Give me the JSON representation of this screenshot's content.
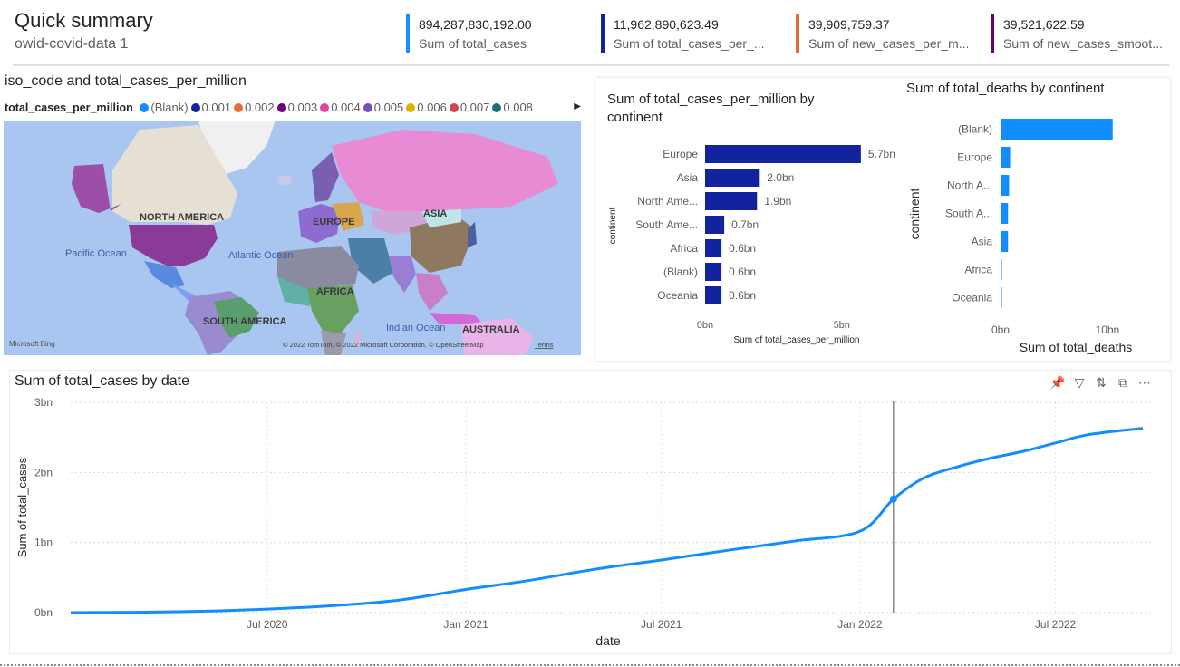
{
  "header": {
    "title": "Quick summary",
    "subtitle": "owid-covid-data 1"
  },
  "kpis": [
    {
      "value": "894,287,830,192.00",
      "label": "Sum of total_cases",
      "color": "#118DFF"
    },
    {
      "value": "11,962,890,623.49",
      "label": "Sum of total_cases_per_...",
      "color": "#12239E"
    },
    {
      "value": "39,909,759.37",
      "label": "Sum of new_cases_per_m...",
      "color": "#E66C37"
    },
    {
      "value": "39,521,622.59",
      "label": "Sum of new_cases_smoot...",
      "color": "#6B007B"
    }
  ],
  "map": {
    "title": "iso_code and total_cases_per_million",
    "legend_title": "total_cases_per_million",
    "legend": [
      {
        "label": "(Blank)",
        "color": "#118DFF"
      },
      {
        "label": "0.001",
        "color": "#12239E"
      },
      {
        "label": "0.002",
        "color": "#E66C37"
      },
      {
        "label": "0.003",
        "color": "#6B007B"
      },
      {
        "label": "0.004",
        "color": "#E044A7"
      },
      {
        "label": "0.005",
        "color": "#744EC2"
      },
      {
        "label": "0.006",
        "color": "#D9B300"
      },
      {
        "label": "0.007",
        "color": "#D64550"
      },
      {
        "label": "0.008",
        "color": "#197278"
      }
    ],
    "labels": {
      "north_america": "NORTH AMERICA",
      "europe": "EUROPE",
      "asia": "ASIA",
      "africa": "AFRICA",
      "south_america": "SOUTH AMERICA",
      "australia": "AUSTRALIA",
      "pacific_ocean": "Pacific Ocean",
      "atlantic_ocean": "Atlantic Ocean",
      "indian_ocean": "Indian Ocean"
    },
    "brand": "Microsoft Bing",
    "attribution": "© 2022 TomTom, © 2022 Microsoft Corporation, © OpenStreetMap",
    "terms": "Terms"
  },
  "toolbar": {
    "pin_icon": "pin-icon",
    "filter_icon": "filter-icon",
    "drill_icon": "drill-icon",
    "focus_icon": "focus-mode-icon",
    "more_icon": "more-options-icon"
  },
  "chart_data": [
    {
      "type": "bar",
      "orientation": "horizontal",
      "title": "Sum of total_cases_per_million by continent",
      "xlabel": "Sum of total_cases_per_million",
      "ylabel": "continent",
      "categories": [
        "Europe",
        "Asia",
        "North Ame...",
        "South Ame...",
        "Africa",
        "(Blank)",
        "Oceania"
      ],
      "values": [
        5.7,
        2.0,
        1.9,
        0.7,
        0.6,
        0.6,
        0.6
      ],
      "value_labels": [
        "5.7bn",
        "2.0bn",
        "1.9bn",
        "0.7bn",
        "0.6bn",
        "0.6bn",
        "0.6bn"
      ],
      "x_ticks": [
        "0bn",
        "5bn"
      ],
      "x_tick_values": [
        0,
        5
      ],
      "xlim": [
        0,
        6.6
      ],
      "color": "#12239E"
    },
    {
      "type": "bar",
      "orientation": "horizontal",
      "title": "Sum of total_deaths by continent",
      "xlabel": "Sum of total_deaths",
      "ylabel": "continent",
      "categories": [
        "(Blank)",
        "Europe",
        "North A...",
        "South A...",
        "Asia",
        "Africa",
        "Oceania"
      ],
      "values": [
        10.5,
        0.9,
        0.8,
        0.7,
        0.7,
        0.1,
        0.02
      ],
      "x_ticks": [
        "0bn",
        "10bn"
      ],
      "x_tick_values": [
        0,
        10
      ],
      "xlim": [
        0,
        12.3
      ],
      "color": "#118DFF"
    },
    {
      "type": "line",
      "title": "Sum of total_cases by date",
      "xlabel": "date",
      "ylabel": "Sum of total_cases",
      "x_ticks": [
        "Jul 2020",
        "Jan 2021",
        "Jul 2021",
        "Jan 2022",
        "Jul 2022"
      ],
      "x_tick_values": [
        "2020-07-01",
        "2021-01-01",
        "2021-07-01",
        "2022-01-01",
        "2022-07-01"
      ],
      "y_ticks": [
        "0bn",
        "1bn",
        "2bn",
        "3bn"
      ],
      "y_tick_values": [
        0,
        1,
        2,
        3
      ],
      "ylim": [
        0,
        3
      ],
      "xlim": [
        "2020-01-01",
        "2022-09-30"
      ],
      "grid": true,
      "color": "#118DFF",
      "x": [
        "2020-01-01",
        "2020-03-01",
        "2020-05-01",
        "2020-07-01",
        "2020-09-01",
        "2020-11-01",
        "2021-01-01",
        "2021-03-01",
        "2021-05-01",
        "2021-07-01",
        "2021-09-01",
        "2021-11-01",
        "2022-01-01",
        "2022-02-01",
        "2022-03-01",
        "2022-04-01",
        "2022-05-01",
        "2022-06-01",
        "2022-07-01",
        "2022-08-01",
        "2022-09-20"
      ],
      "values": [
        0.0,
        0.005,
        0.02,
        0.05,
        0.1,
        0.18,
        0.33,
        0.46,
        0.62,
        0.75,
        0.89,
        1.02,
        1.16,
        1.62,
        1.92,
        2.08,
        2.2,
        2.3,
        2.42,
        2.54,
        2.63
      ],
      "highlight": {
        "x": "2022-02-01",
        "y": 1.62
      }
    }
  ]
}
